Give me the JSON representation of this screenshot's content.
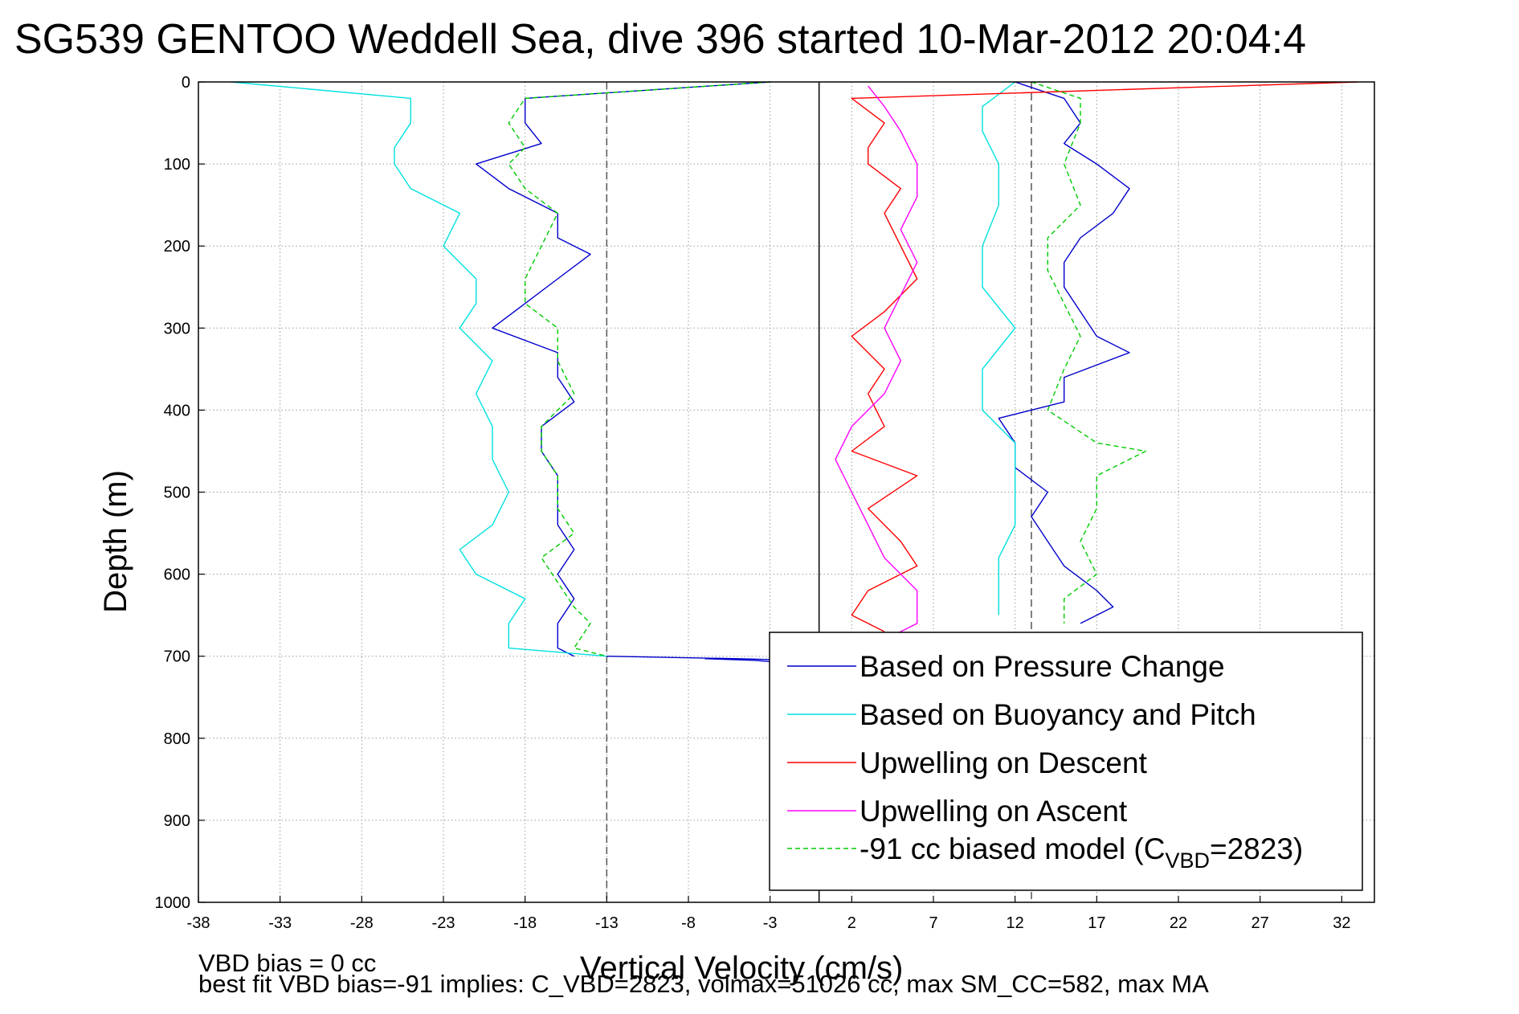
{
  "chart_data": {
    "type": "line",
    "title": "SG539 GENTOO Weddell Sea, dive 396 started 10-Mar-2012 20:04:4",
    "xlabel": "Vertical Velocity (cm/s)",
    "ylabel": "Depth (m)",
    "xlim": [
      -38,
      34
    ],
    "ylim": [
      0,
      1000
    ],
    "y_reversed": true,
    "x_ticks": [
      -38,
      -33,
      -28,
      -23,
      -18,
      -13,
      -8,
      -3,
      2,
      7,
      12,
      17,
      22,
      27,
      32
    ],
    "y_ticks": [
      0,
      100,
      200,
      300,
      400,
      500,
      600,
      700,
      800,
      900,
      1000
    ],
    "grid": true,
    "legend_position": "lower-right",
    "reference_lines": [
      {
        "x": -13,
        "style": "dashed",
        "color": "#555555"
      },
      {
        "x": 0,
        "style": "solid",
        "color": "#000000"
      },
      {
        "x": 13,
        "style": "dashed",
        "color": "#555555"
      }
    ],
    "series": [
      {
        "name": "Based on Pressure Change",
        "color": "#0000cc",
        "style": "solid",
        "segments": [
          {
            "depth": [
              0,
              20,
              50,
              75,
              100,
              130,
              160,
              190,
              210,
              240,
              270,
              300,
              330,
              360,
              390,
              420,
              450,
              480,
              510,
              540,
              570,
              600,
              630,
              660,
              690,
              700
            ],
            "velocity": [
              -3,
              -18,
              -18,
              -17,
              -21,
              -19,
              -16,
              -16,
              -14,
              -16,
              -18,
              -20,
              -16,
              -16,
              -15,
              -17,
              -17,
              -16,
              -16,
              -16,
              -15,
              -16,
              -15,
              -16,
              -16,
              -15
            ]
          },
          {
            "depth": [
              0,
              20,
              50,
              75,
              100,
              130,
              160,
              190,
              220,
              250,
              280,
              310,
              330,
              360,
              390,
              410,
              440,
              470,
              500,
              530,
              560,
              590,
              620,
              640,
              660
            ],
            "velocity": [
              12,
              15,
              16,
              15,
              17,
              19,
              18,
              16,
              15,
              15,
              16,
              17,
              19,
              15,
              15,
              11,
              12,
              12,
              14,
              13,
              14,
              15,
              17,
              18,
              16
            ]
          }
        ]
      },
      {
        "name": "Based on Buoyancy and Pitch",
        "color": "#00e0e0",
        "style": "solid",
        "segments": [
          {
            "depth": [
              0,
              20,
              50,
              80,
              100,
              130,
              160,
              200,
              240,
              270,
              300,
              340,
              380,
              420,
              460,
              500,
              540,
              570,
              600,
              630,
              660,
              690,
              700
            ],
            "velocity": [
              -36,
              -25,
              -25,
              -26,
              -26,
              -25,
              -22,
              -23,
              -21,
              -21,
              -22,
              -20,
              -21,
              -20,
              -20,
              -19,
              -20,
              -22,
              -21,
              -18,
              -19,
              -19,
              -13
            ]
          },
          {
            "depth": [
              0,
              30,
              60,
              100,
              150,
              200,
              250,
              300,
              350,
              400,
              440,
              460,
              500,
              540,
              580,
              620,
              650
            ],
            "velocity": [
              12,
              10,
              10,
              11,
              11,
              10,
              10,
              12,
              10,
              10,
              12,
              12,
              12,
              12,
              11,
              11,
              11
            ]
          }
        ]
      },
      {
        "name": "Upwelling on Descent",
        "color": "#ff0000",
        "style": "solid",
        "segments": [
          {
            "depth": [
              0,
              20,
              50,
              80,
              100,
              130,
              160,
              200,
              240,
              280,
              310,
              350,
              380,
              420,
              450,
              480,
              520,
              560,
              590,
              620,
              650,
              670
            ],
            "velocity": [
              33,
              2,
              4,
              3,
              3,
              5,
              4,
              5,
              6,
              4,
              2,
              4,
              3,
              4,
              2,
              6,
              3,
              5,
              6,
              3,
              2,
              4
            ]
          }
        ]
      },
      {
        "name": "Upwelling on Ascent",
        "color": "#ff00ff",
        "style": "solid",
        "segments": [
          {
            "depth": [
              5,
              30,
              60,
              100,
              140,
              180,
              220,
              260,
              300,
              340,
              380,
              420,
              460,
              500,
              540,
              580,
              620,
              660,
              680
            ],
            "velocity": [
              3,
              4,
              5,
              6,
              6,
              5,
              6,
              5,
              4,
              5,
              4,
              2,
              1,
              2,
              3,
              4,
              6,
              6,
              4
            ]
          }
        ]
      },
      {
        "name": "-91 cc biased model (C_VBD=2823)",
        "color": "#00cc00",
        "style": "dashed",
        "segments": [
          {
            "depth": [
              0,
              20,
              50,
              80,
              100,
              130,
              160,
              200,
              240,
              270,
              300,
              340,
              380,
              420,
              450,
              480,
              520,
              550,
              580,
              610,
              640,
              660,
              690,
              700
            ],
            "velocity": [
              -3,
              -18,
              -19,
              -18,
              -19,
              -18,
              -16,
              -17,
              -18,
              -18,
              -16,
              -16,
              -15,
              -17,
              -17,
              -16,
              -16,
              -15,
              -17,
              -16,
              -15,
              -14,
              -15,
              -13
            ]
          },
          {
            "depth": [
              0,
              20,
              50,
              100,
              150,
              190,
              230,
              270,
              310,
              350,
              400,
              440,
              450,
              480,
              520,
              560,
              600,
              630,
              660
            ],
            "velocity": [
              13,
              16,
              16,
              15,
              16,
              14,
              14,
              15,
              16,
              15,
              14,
              17,
              20,
              17,
              17,
              16,
              17,
              15,
              15
            ]
          }
        ]
      },
      {
        "name": "",
        "color": "#0000cc",
        "style": "solid",
        "segments": [
          {
            "depth": [
              700,
              703,
              705,
              708,
              705,
              703
            ],
            "velocity": [
              -13,
              -5,
              -1,
              -2,
              -4,
              -7
            ]
          }
        ]
      }
    ],
    "legend": [
      {
        "label": "Based on Pressure Change",
        "color": "#0000cc",
        "style": "solid"
      },
      {
        "label": "Based on Buoyancy and Pitch",
        "color": "#00e0e0",
        "style": "solid"
      },
      {
        "label": "Upwelling on Descent",
        "color": "#ff0000",
        "style": "solid"
      },
      {
        "label": "Upwelling on Ascent",
        "color": "#ff00ff",
        "style": "solid"
      },
      {
        "label_prefix": "-91 cc biased model (C",
        "label_sub": "VBD",
        "label_suffix": "=2823)",
        "color": "#00cc00",
        "style": "dashed"
      }
    ],
    "footer": [
      "VBD bias = 0 cc",
      "best fit VBD bias=-91 implies: C_VBD=2823, volmax=51026 cc, max SM_CC=582, max MA"
    ]
  }
}
